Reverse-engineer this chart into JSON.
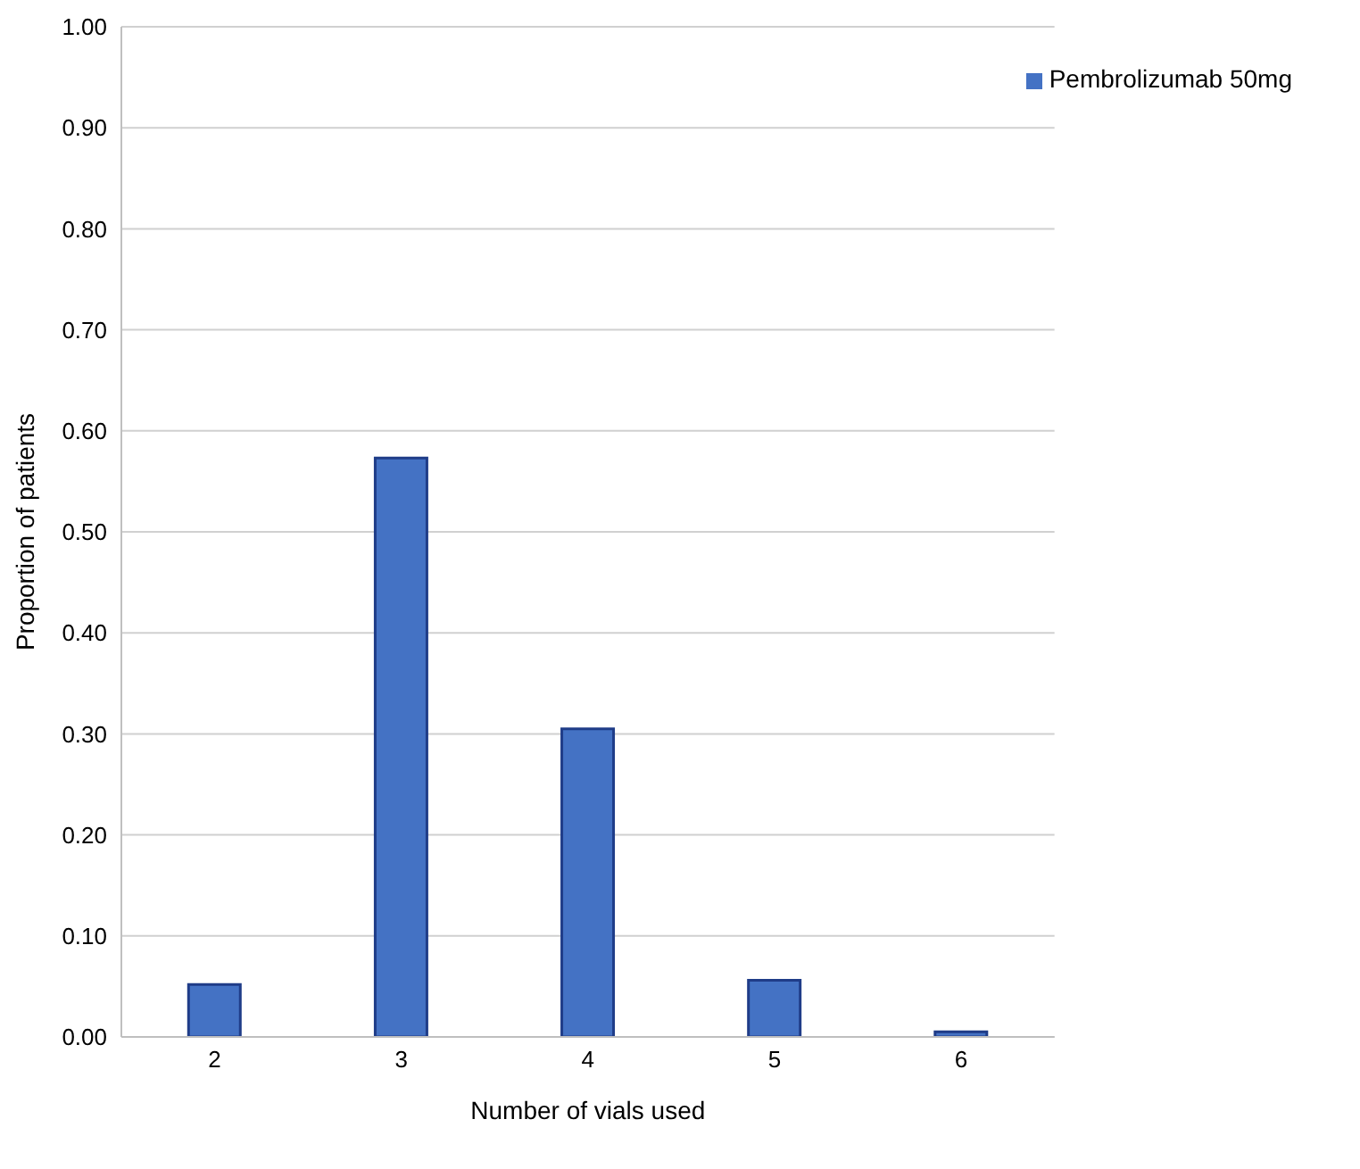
{
  "chart_data": {
    "type": "bar",
    "xlabel": "Number of vials used",
    "ylabel": "Proportion of patients",
    "categories": [
      "2",
      "3",
      "4",
      "5",
      "6"
    ],
    "series": [
      {
        "name": "Pembrolizumab 50mg",
        "color": "#4472c4",
        "values": [
          0.052,
          0.573,
          0.305,
          0.056,
          0.005
        ]
      }
    ],
    "ylim": [
      0,
      1
    ],
    "yticks": [
      {
        "value": 0,
        "label": "0.00"
      },
      {
        "value": 0.1,
        "label": "0.10"
      },
      {
        "value": 0.2,
        "label": "0.20"
      },
      {
        "value": 0.3,
        "label": "0.30"
      },
      {
        "value": 0.4,
        "label": "0.40"
      },
      {
        "value": 0.5,
        "label": "0.50"
      },
      {
        "value": 0.6,
        "label": "0.60"
      },
      {
        "value": 0.7,
        "label": "0.70"
      },
      {
        "value": 0.8,
        "label": "0.80"
      },
      {
        "value": 0.9,
        "label": "0.90"
      },
      {
        "value": 1,
        "label": "1.00"
      }
    ],
    "grid": "y",
    "legend": "top right"
  }
}
